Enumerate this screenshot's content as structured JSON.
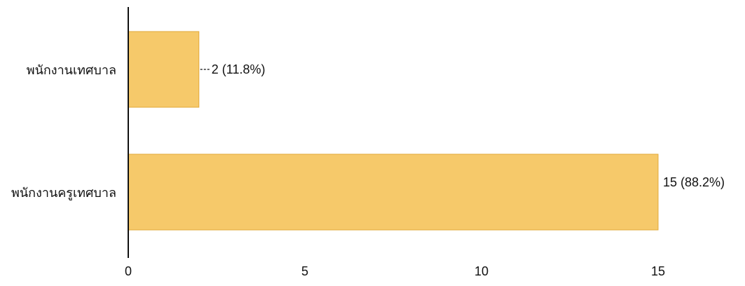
{
  "chart_data": {
    "type": "bar",
    "orientation": "horizontal",
    "title": "",
    "xlabel": "",
    "ylabel": "",
    "categories": [
      "พนักงานเทศบาล",
      "พนักงานครูเทศบาล"
    ],
    "values": [
      2,
      15
    ],
    "value_labels": [
      "2 (11.8%)",
      "15 (88.2%)"
    ],
    "xlim": [
      0,
      15
    ],
    "xticks": [
      0,
      5,
      10,
      15
    ],
    "xtick_labels": [
      "0",
      "5",
      "10",
      "15"
    ],
    "grid": false,
    "legend": "none",
    "colors": {
      "bar": "#f6c96a",
      "bar_edge": "#e2a93a",
      "axis": "#111111"
    }
  }
}
